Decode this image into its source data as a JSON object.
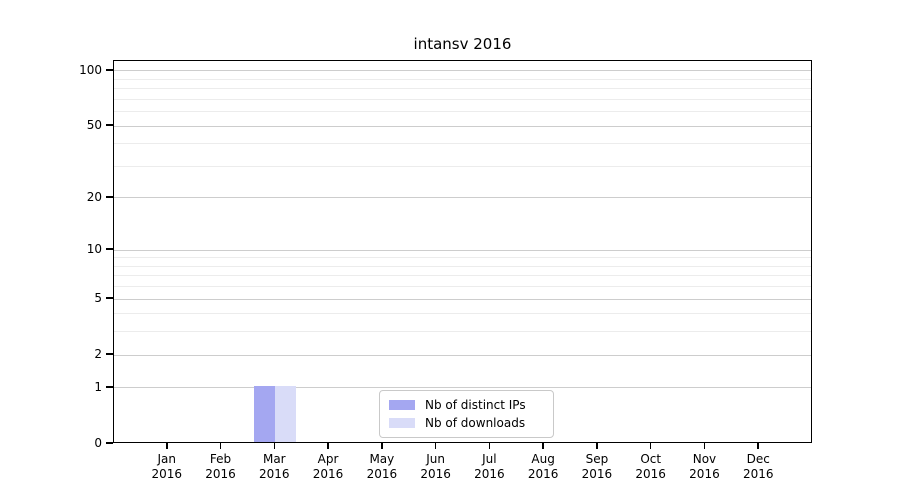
{
  "chart_data": {
    "type": "bar",
    "title": "intansv 2016",
    "categories": [
      "Jan",
      "Feb",
      "Mar",
      "Apr",
      "May",
      "Jun",
      "Jul",
      "Aug",
      "Sep",
      "Oct",
      "Nov",
      "Dec"
    ],
    "year_label": "2016",
    "series": [
      {
        "name": "Nb of distinct IPs",
        "color": "#a4a7f1",
        "values": [
          0,
          0,
          1,
          0,
          0,
          0,
          0,
          0,
          0,
          0,
          0,
          0
        ]
      },
      {
        "name": "Nb of downloads",
        "color": "#d9dcf8",
        "values": [
          0,
          0,
          1,
          0,
          0,
          0,
          0,
          0,
          0,
          0,
          0,
          0
        ]
      }
    ],
    "y_axis": {
      "scale": "log1p",
      "ticks": [
        0,
        1,
        2,
        5,
        10,
        20,
        50,
        100
      ],
      "minor_ticks": [
        3,
        4,
        6,
        7,
        8,
        9,
        30,
        40,
        60,
        70,
        80,
        90
      ],
      "range": [
        0,
        113
      ]
    },
    "x_axis": {
      "tick_label_lines": 2
    },
    "grid": {
      "major_color": "#cdcdcd",
      "minor_color": "#ececec"
    },
    "legend": {
      "position": "lower center"
    }
  }
}
